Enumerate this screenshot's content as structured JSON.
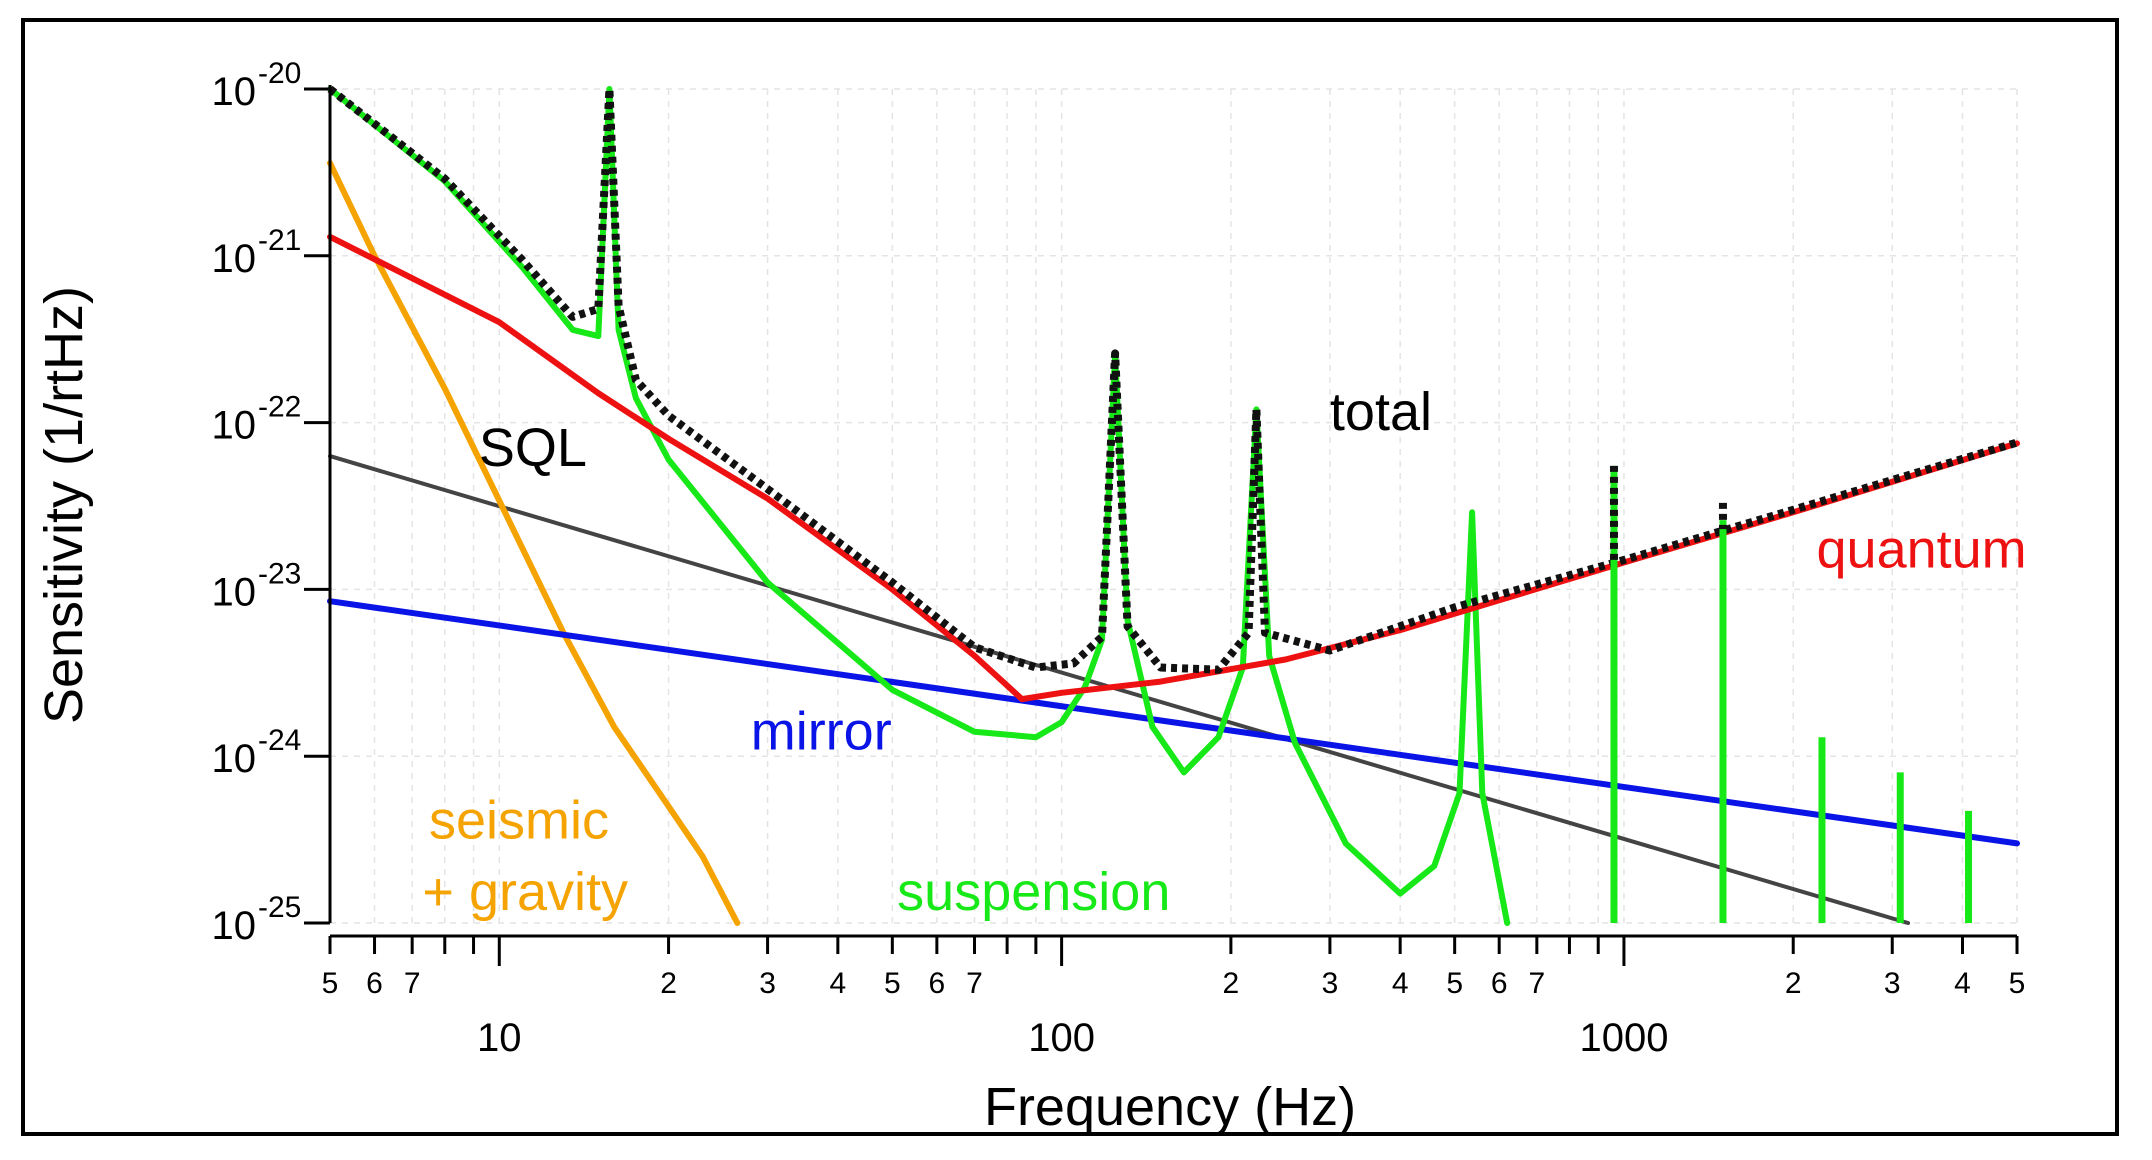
{
  "chart_data": {
    "type": "line",
    "xscale": "log",
    "yscale": "log",
    "xlim": [
      5,
      5000
    ],
    "ylim": [
      1e-25,
      1e-20
    ],
    "grid": true,
    "xlabel": "Frequency (Hz)",
    "ylabel": "Sensitivity (1/rtHz)",
    "yticks": [
      {
        "value": 1e-20,
        "base": "10",
        "exp": "-20"
      },
      {
        "value": 1e-21,
        "base": "10",
        "exp": "-21"
      },
      {
        "value": 1e-22,
        "base": "10",
        "exp": "-22"
      },
      {
        "value": 1e-23,
        "base": "10",
        "exp": "-23"
      },
      {
        "value": 1e-24,
        "base": "10",
        "exp": "-24"
      },
      {
        "value": 1e-25,
        "base": "10",
        "exp": "-25"
      }
    ],
    "xticks_major": [
      {
        "value": 10,
        "label": "10"
      },
      {
        "value": 100,
        "label": "100"
      },
      {
        "value": 1000,
        "label": "1000"
      }
    ],
    "xticks_minor": [
      {
        "value": 5,
        "label": "5"
      },
      {
        "value": 6,
        "label": "6"
      },
      {
        "value": 7,
        "label": "7"
      },
      {
        "value": 8,
        "label": ""
      },
      {
        "value": 9,
        "label": ""
      },
      {
        "value": 20,
        "label": "2"
      },
      {
        "value": 30,
        "label": "3"
      },
      {
        "value": 40,
        "label": "4"
      },
      {
        "value": 50,
        "label": "5"
      },
      {
        "value": 60,
        "label": "6"
      },
      {
        "value": 70,
        "label": "7"
      },
      {
        "value": 80,
        "label": ""
      },
      {
        "value": 90,
        "label": ""
      },
      {
        "value": 200,
        "label": "2"
      },
      {
        "value": 300,
        "label": "3"
      },
      {
        "value": 400,
        "label": "4"
      },
      {
        "value": 500,
        "label": "5"
      },
      {
        "value": 600,
        "label": "6"
      },
      {
        "value": 700,
        "label": "7"
      },
      {
        "value": 800,
        "label": ""
      },
      {
        "value": 900,
        "label": ""
      },
      {
        "value": 2000,
        "label": "2"
      },
      {
        "value": 3000,
        "label": "3"
      },
      {
        "value": 4000,
        "label": "4"
      },
      {
        "value": 5000,
        "label": "5"
      }
    ],
    "series": [
      {
        "name": "seismic + gravity",
        "color": "#f5a300",
        "x": [
          5,
          6,
          8,
          10,
          13,
          16,
          20,
          23,
          26.5
        ],
        "y": [
          3.6e-21,
          1e-21,
          1.6e-22,
          3.4e-23,
          5.5e-24,
          1.5e-24,
          5e-25,
          2.5e-25,
          1e-25
        ]
      },
      {
        "name": "SQL",
        "color": "#444444",
        "x": [
          5,
          3200
        ],
        "y": [
          6.3e-23,
          1e-25
        ]
      },
      {
        "name": "mirror",
        "color": "#0a14e6",
        "x": [
          5,
          5000
        ],
        "y": [
          8.5e-24,
          3e-25
        ]
      },
      {
        "name": "quantum",
        "color": "#ee1111",
        "x": [
          5,
          10,
          15,
          20,
          30,
          50,
          70,
          85,
          100,
          150,
          250,
          400,
          600,
          1000,
          2000,
          5000
        ],
        "y": [
          1.3e-21,
          4e-22,
          1.5e-22,
          8e-23,
          3.5e-23,
          1e-23,
          4e-24,
          2.2e-24,
          2.4e-24,
          2.8e-24,
          3.8e-24,
          5.7e-24,
          8.6e-24,
          1.45e-23,
          2.9e-23,
          7.5e-23
        ]
      },
      {
        "name": "suspension",
        "color": "#17e817",
        "x": [
          5,
          8,
          11,
          13.5,
          15,
          15.7,
          16.3,
          17.5,
          20,
          30,
          50,
          70,
          90,
          100,
          110,
          118,
          124.5,
          131,
          145,
          165,
          190,
          210,
          222,
          234,
          260,
          320,
          400,
          460,
          510,
          537,
          560,
          620
        ],
        "y": [
          1e-20,
          2.8e-21,
          8.5e-22,
          3.6e-22,
          3.3e-22,
          1e-20,
          3.6e-22,
          1.4e-22,
          6e-23,
          1.1e-23,
          2.5e-24,
          1.4e-24,
          1.3e-24,
          1.6e-24,
          2.6e-24,
          5e-24,
          2.6e-22,
          6.5e-24,
          1.5e-24,
          8e-25,
          1.3e-24,
          3.4e-24,
          1.2e-22,
          4e-24,
          1.2e-24,
          3e-25,
          1.5e-25,
          2.2e-25,
          6e-25,
          2.9e-23,
          6e-25,
          1e-25
        ]
      },
      {
        "name": "total",
        "color": "#111111",
        "x": [
          5,
          8,
          11,
          13.5,
          15,
          15.7,
          16.3,
          17.5,
          20,
          30,
          50,
          70,
          90,
          105,
          118,
          124.5,
          131,
          150,
          190,
          215,
          222,
          230,
          300,
          500,
          1000,
          2000,
          5000
        ],
        "y": [
          1e-20,
          2.9e-21,
          9.4e-22,
          4.3e-22,
          4.8e-22,
          1e-20,
          5e-22,
          1.8e-22,
          1.1e-22,
          4e-23,
          1.1e-23,
          4.5e-24,
          3.4e-24,
          3.6e-24,
          5.2e-24,
          2.6e-22,
          6e-24,
          3.4e-24,
          3.3e-24,
          5.5e-24,
          1.2e-22,
          5.5e-24,
          4.3e-24,
          7.8e-24,
          1.5e-23,
          3e-23,
          7.6e-23
        ]
      }
    ],
    "resonance_spikes": [
      {
        "x": 960,
        "y_top": 5.5e-23,
        "y_bottom": 1e-25,
        "color": "#17e817",
        "label": "suspension"
      },
      {
        "x": 1500,
        "y_top": 2.6e-23,
        "y_bottom": 1e-25,
        "color": "#17e817",
        "label": "suspension"
      },
      {
        "x": 2250,
        "y_top": 1.3e-24,
        "y_bottom": 1e-25,
        "color": "#17e817",
        "label": "suspension"
      },
      {
        "x": 3100,
        "y_top": 8e-25,
        "y_bottom": 1e-25,
        "color": "#17e817",
        "label": "suspension"
      },
      {
        "x": 4100,
        "y_top": 4.7e-25,
        "y_bottom": 1e-25,
        "color": "#17e817",
        "label": "suspension"
      },
      {
        "x": 960,
        "y_top": 5.5e-23,
        "y_bottom": 1.5e-23,
        "color": "#111111",
        "label": "total"
      },
      {
        "x": 1500,
        "y_top": 3.3e-23,
        "y_bottom": 2.3e-23,
        "color": "#111111",
        "label": "total"
      }
    ],
    "annotations": [
      {
        "text": "total",
        "color": "#000000",
        "x": 300,
        "y": 9e-23
      },
      {
        "text": "SQL",
        "color": "#000000",
        "x": 9.2,
        "y": 5.5e-23
      },
      {
        "text": "quantum",
        "color": "#ee1111",
        "x": 2200,
        "y": 1.35e-23
      },
      {
        "text": "mirror",
        "color": "#0a14e6",
        "x": 28,
        "y": 1.1e-24
      },
      {
        "text": "seismic",
        "color": "#f5a300",
        "x": 7.5,
        "y": 3.2e-25
      },
      {
        "text": "+ gravity",
        "color": "#f5a300",
        "x": 7.3,
        "y": 1.2e-25
      },
      {
        "text": "suspension",
        "color": "#17e817",
        "x": 51,
        "y": 1.2e-25
      }
    ]
  }
}
